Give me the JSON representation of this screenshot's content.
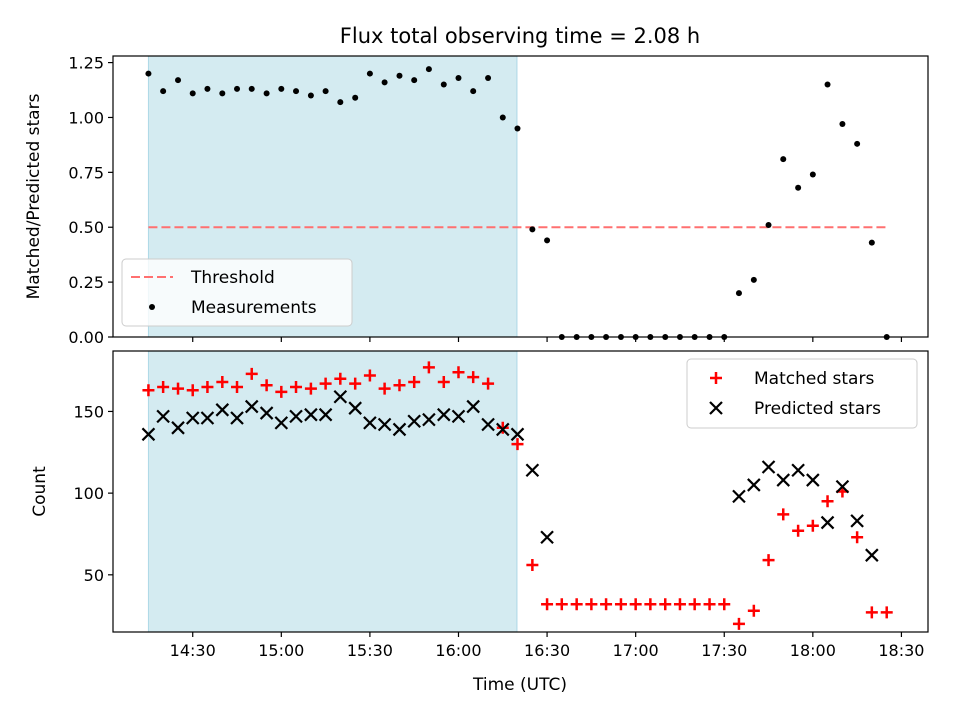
{
  "chart_data": {
    "title": "Flux total observing time = 2.08 h",
    "xlabel": "Time (UTC)",
    "x_unit": "hours UTC",
    "xlim": [
      14.05,
      18.65
    ],
    "x_ticks": [
      {
        "value": 14.5,
        "label": "14:30"
      },
      {
        "value": 15.0,
        "label": "15:00"
      },
      {
        "value": 15.5,
        "label": "15:30"
      },
      {
        "value": 16.0,
        "label": "16:00"
      },
      {
        "value": 16.5,
        "label": "16:30"
      },
      {
        "value": 17.0,
        "label": "17:00"
      },
      {
        "value": 17.5,
        "label": "17:30"
      },
      {
        "value": 18.0,
        "label": "18:00"
      },
      {
        "value": 18.5,
        "label": "18:30"
      }
    ],
    "span": {
      "start": 14.25,
      "end": 16.33,
      "color": "#d4ebf1",
      "edge": "#add8e6"
    },
    "panels": [
      {
        "type": "scatter",
        "ylabel": "Matched/Predicted stars",
        "ylim": [
          0,
          1.28
        ],
        "yticks": [
          {
            "value": 0,
            "label": "0.00"
          },
          {
            "value": 0.25,
            "label": "0.25"
          },
          {
            "value": 0.5,
            "label": "0.50"
          },
          {
            "value": 0.75,
            "label": "0.75"
          },
          {
            "value": 1.0,
            "label": "1.00"
          },
          {
            "value": 1.25,
            "label": "1.25"
          }
        ],
        "legend_position": "lower-left",
        "legend": [
          {
            "label": "Threshold",
            "kind": "dashed-line",
            "color": "#ff7070"
          },
          {
            "label": "Measurements",
            "kind": "dot",
            "color": "#000000"
          }
        ],
        "threshold": {
          "y": 0.5,
          "x_start": 14.25,
          "x_end": 18.42,
          "color": "#ff7070"
        },
        "measurements": {
          "x": [
            14.25,
            14.333,
            14.417,
            14.5,
            14.583,
            14.667,
            14.75,
            14.833,
            14.917,
            15.0,
            15.083,
            15.167,
            15.25,
            15.333,
            15.417,
            15.5,
            15.583,
            15.667,
            15.75,
            15.833,
            15.917,
            16.0,
            16.083,
            16.167,
            16.25,
            16.333,
            16.417,
            16.5,
            16.583,
            16.667,
            16.75,
            16.833,
            16.917,
            17.0,
            17.083,
            17.167,
            17.25,
            17.333,
            17.417,
            17.5,
            17.583,
            17.667,
            17.75,
            17.833,
            17.917,
            18.0,
            18.083,
            18.167,
            18.25,
            18.333,
            18.417
          ],
          "y": [
            1.2,
            1.12,
            1.17,
            1.11,
            1.13,
            1.11,
            1.13,
            1.13,
            1.11,
            1.13,
            1.12,
            1.1,
            1.12,
            1.07,
            1.09,
            1.2,
            1.16,
            1.19,
            1.17,
            1.22,
            1.15,
            1.18,
            1.12,
            1.18,
            1.0,
            0.95,
            0.49,
            0.44,
            0.0,
            0.0,
            0.0,
            0.0,
            0.0,
            0.0,
            0.0,
            0.0,
            0.0,
            0.0,
            0.0,
            0.0,
            0.2,
            0.26,
            0.51,
            0.81,
            0.68,
            0.74,
            1.15,
            0.97,
            0.88,
            0.43,
            0.0
          ]
        }
      },
      {
        "type": "scatter",
        "ylabel": "Count",
        "ylim": [
          15,
          187
        ],
        "yticks": [
          {
            "value": 50,
            "label": "50"
          },
          {
            "value": 100,
            "label": "100"
          },
          {
            "value": 150,
            "label": "150"
          }
        ],
        "legend_position": "upper-right",
        "series": [
          {
            "name": "Matched stars",
            "marker": "+",
            "color": "#ff0000",
            "x": [
              14.25,
              14.333,
              14.417,
              14.5,
              14.583,
              14.667,
              14.75,
              14.833,
              14.917,
              15.0,
              15.083,
              15.167,
              15.25,
              15.333,
              15.417,
              15.5,
              15.583,
              15.667,
              15.75,
              15.833,
              15.917,
              16.0,
              16.083,
              16.167,
              16.25,
              16.333,
              16.417,
              16.5,
              16.583,
              16.667,
              16.75,
              16.833,
              16.917,
              17.0,
              17.083,
              17.167,
              17.25,
              17.333,
              17.417,
              17.5,
              17.583,
              17.667,
              17.75,
              17.833,
              17.917,
              18.0,
              18.083,
              18.167,
              18.25,
              18.333,
              18.417
            ],
            "y": [
              163,
              165,
              164,
              163,
              165,
              168,
              165,
              173,
              166,
              162,
              165,
              164,
              167,
              170,
              167,
              172,
              164,
              166,
              168,
              177,
              168,
              174,
              171,
              167,
              140,
              130,
              56,
              32,
              32,
              32,
              32,
              32,
              32,
              32,
              32,
              32,
              32,
              32,
              32,
              32,
              20,
              28,
              59,
              87,
              77,
              80,
              95,
              101,
              73,
              27,
              27
            ]
          },
          {
            "name": "Predicted stars",
            "marker": "x",
            "color": "#000000",
            "x": [
              14.25,
              14.333,
              14.417,
              14.5,
              14.583,
              14.667,
              14.75,
              14.833,
              14.917,
              15.0,
              15.083,
              15.167,
              15.25,
              15.333,
              15.417,
              15.5,
              15.583,
              15.667,
              15.75,
              15.833,
              15.917,
              16.0,
              16.083,
              16.167,
              16.25,
              16.333,
              16.417,
              16.5,
              17.583,
              17.667,
              17.75,
              17.833,
              17.917,
              18.0,
              18.083,
              18.167,
              18.25,
              18.333
            ],
            "y": [
              136,
              147,
              140,
              146,
              146,
              151,
              146,
              153,
              149,
              143,
              147,
              148,
              148,
              159,
              152,
              143,
              142,
              139,
              144,
              145,
              148,
              147,
              153,
              142,
              139,
              136,
              114,
              73,
              98,
              105,
              116,
              108,
              114,
              108,
              82,
              104,
              83,
              62
            ]
          }
        ]
      }
    ]
  }
}
